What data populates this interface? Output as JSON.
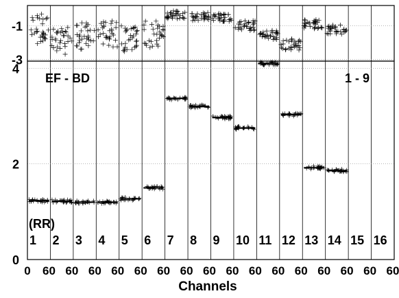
{
  "chart_data": [
    {
      "type": "scatter",
      "panel": "top",
      "xlabel": "",
      "ylabel": "",
      "ylim": [
        -3.1,
        0.2
      ],
      "ytick_labels": [
        "-1",
        "-3"
      ],
      "yticks": [
        -1,
        -3
      ],
      "grid": true,
      "segments": [
        {
          "channel": 1,
          "mean": -1.2,
          "spread": 0.9
        },
        {
          "channel": 2,
          "mean": -1.9,
          "spread": 0.8
        },
        {
          "channel": 3,
          "mean": -1.6,
          "spread": 0.8
        },
        {
          "channel": 4,
          "mean": -1.5,
          "spread": 0.8
        },
        {
          "channel": 5,
          "mean": -1.8,
          "spread": 0.8
        },
        {
          "channel": 6,
          "mean": -1.5,
          "spread": 0.8
        },
        {
          "channel": 7,
          "mean": -0.35,
          "spread": 0.25
        },
        {
          "channel": 8,
          "mean": -0.45,
          "spread": 0.25
        },
        {
          "channel": 9,
          "mean": -0.5,
          "spread": 0.25
        },
        {
          "channel": 10,
          "mean": -1.0,
          "spread": 0.3
        },
        {
          "channel": 11,
          "mean": -1.55,
          "spread": 0.3
        },
        {
          "channel": 12,
          "mean": -2.1,
          "spread": 0.35
        },
        {
          "channel": 13,
          "mean": -0.9,
          "spread": 0.3
        },
        {
          "channel": 14,
          "mean": -1.2,
          "spread": 0.3
        }
      ]
    },
    {
      "type": "scatter",
      "panel": "bottom",
      "title": "EF - BD",
      "annotation_right": "1 - 9",
      "row_label": "(RR)",
      "xlabel": "Channels",
      "ylabel": "",
      "ylim": [
        0,
        4.15
      ],
      "ytick_labels": [
        "0",
        "2",
        "4"
      ],
      "yticks": [
        0,
        2,
        4
      ],
      "channel_numbers": [
        "1",
        "2",
        "3",
        "4",
        "5",
        "6",
        "7",
        "8",
        "9",
        "10",
        "11",
        "12",
        "13",
        "14",
        "15",
        "16"
      ],
      "x_tick_labels": [
        "0",
        "60",
        "60",
        "60",
        "60",
        "60",
        "60",
        "60",
        "60",
        "60",
        "60",
        "60",
        "60",
        "60",
        "60",
        "60",
        "60"
      ],
      "grid": true,
      "segments": [
        {
          "channel": 1,
          "mean": 1.23
        },
        {
          "channel": 2,
          "mean": 1.22
        },
        {
          "channel": 3,
          "mean": 1.2
        },
        {
          "channel": 4,
          "mean": 1.2
        },
        {
          "channel": 5,
          "mean": 1.27
        },
        {
          "channel": 6,
          "mean": 1.5
        },
        {
          "channel": 7,
          "mean": 3.37
        },
        {
          "channel": 8,
          "mean": 3.2
        },
        {
          "channel": 9,
          "mean": 2.97
        },
        {
          "channel": 10,
          "mean": 2.75
        },
        {
          "channel": 11,
          "mean": 4.1
        },
        {
          "channel": 12,
          "mean": 3.03
        },
        {
          "channel": 13,
          "mean": 1.92
        },
        {
          "channel": 14,
          "mean": 1.86
        }
      ]
    }
  ]
}
